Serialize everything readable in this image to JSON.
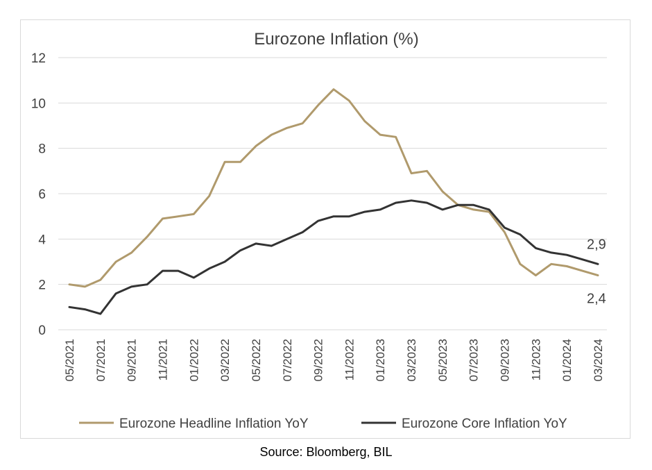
{
  "source": "Source: Bloomberg, BIL",
  "chart_data": {
    "type": "line",
    "title": "Eurozone Inflation (%)",
    "xlabel": "",
    "ylabel": "",
    "ylim": [
      0,
      12
    ],
    "yticks": [
      "0",
      "2",
      "4",
      "6",
      "8",
      "10",
      "12"
    ],
    "grid": true,
    "legend_position": "bottom",
    "x": [
      "05/2021",
      "06/2021",
      "07/2021",
      "08/2021",
      "09/2021",
      "10/2021",
      "11/2021",
      "12/2021",
      "01/2022",
      "02/2022",
      "03/2022",
      "04/2022",
      "05/2022",
      "06/2022",
      "07/2022",
      "08/2022",
      "09/2022",
      "10/2022",
      "11/2022",
      "12/2022",
      "01/2023",
      "02/2023",
      "03/2023",
      "04/2023",
      "05/2023",
      "06/2023",
      "07/2023",
      "08/2023",
      "09/2023",
      "10/2023",
      "11/2023",
      "12/2023",
      "01/2024",
      "02/2024",
      "03/2024"
    ],
    "xtick_labels": [
      "05/2021",
      "07/2021",
      "09/2021",
      "11/2021",
      "01/2022",
      "03/2022",
      "05/2022",
      "07/2022",
      "09/2022",
      "11/2022",
      "01/2023",
      "03/2023",
      "05/2023",
      "07/2023",
      "09/2023",
      "11/2023",
      "01/2024",
      "03/2024"
    ],
    "series": [
      {
        "name": "Eurozone Headline Inflation YoY",
        "color": "#B09A6C",
        "values": [
          2.0,
          1.9,
          2.2,
          3.0,
          3.4,
          4.1,
          4.9,
          5.0,
          5.1,
          5.9,
          7.4,
          7.4,
          8.1,
          8.6,
          8.9,
          9.1,
          9.9,
          10.6,
          10.1,
          9.2,
          8.6,
          8.5,
          6.9,
          7.0,
          6.1,
          5.5,
          5.3,
          5.2,
          4.3,
          2.9,
          2.4,
          2.9,
          2.8,
          2.6,
          2.4
        ],
        "end_label": "2,4"
      },
      {
        "name": "Eurozone Core Inflation YoY",
        "color": "#333333",
        "values": [
          1.0,
          0.9,
          0.7,
          1.6,
          1.9,
          2.0,
          2.6,
          2.6,
          2.3,
          2.7,
          3.0,
          3.5,
          3.8,
          3.7,
          4.0,
          4.3,
          4.8,
          5.0,
          5.0,
          5.2,
          5.3,
          5.6,
          5.7,
          5.6,
          5.3,
          5.5,
          5.5,
          5.3,
          4.5,
          4.2,
          3.6,
          3.4,
          3.3,
          3.1,
          2.9
        ],
        "end_label": "2,9"
      }
    ]
  }
}
